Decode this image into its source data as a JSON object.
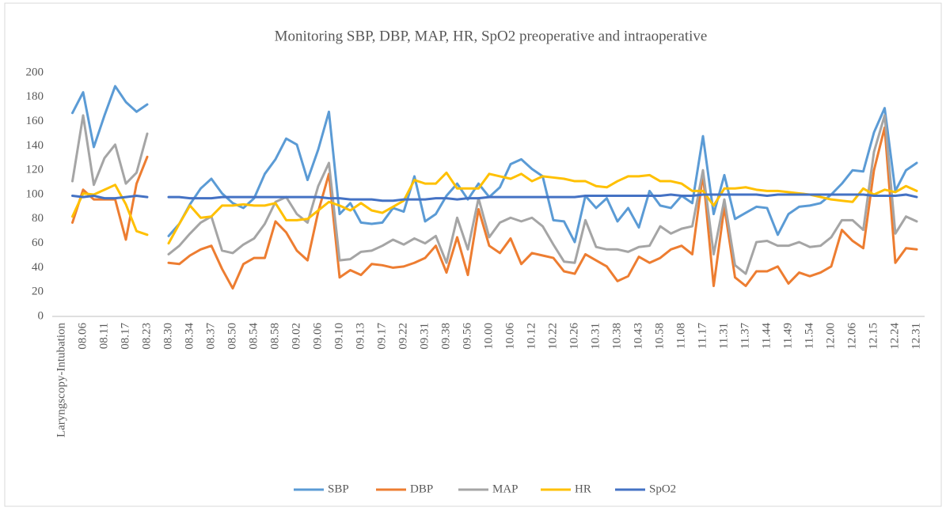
{
  "chart_data": {
    "type": "line",
    "title": "Monitoring SBP, DBP, MAP, HR, SpO2 preoperative and intraoperative",
    "categories": [
      "Laryngscopy-Intubation",
      null,
      "08.06",
      null,
      "08.11",
      null,
      "08.17",
      null,
      "08.23",
      null,
      "08.30",
      null,
      "08.34",
      null,
      "08.37",
      null,
      "08.50",
      null,
      "08.54",
      null,
      "08.58",
      null,
      "09.02",
      null,
      "09.06",
      null,
      "09.10",
      null,
      "09.13",
      null,
      "09.17",
      null,
      "09.22",
      null,
      "09.31",
      null,
      "09.38",
      null,
      "09.56",
      null,
      "10.00",
      null,
      "10.06",
      null,
      "10.12",
      null,
      "10.22",
      null,
      "10.26",
      null,
      "10.31",
      null,
      "10.38",
      null,
      "10.43",
      null,
      "10.58",
      null,
      "11.08",
      null,
      "11.17",
      null,
      "11.31",
      null,
      "11.37",
      null,
      "11.44",
      null,
      "11.49",
      null,
      "11.54",
      null,
      "12.00",
      null,
      "12.06",
      null,
      "12.15",
      null,
      "12.24",
      null,
      "12.31"
    ],
    "series": [
      {
        "name": "SBP",
        "color": "#5b9bd5",
        "values": [
          null,
          167,
          184,
          139,
          165,
          189,
          176,
          168,
          174,
          null,
          66,
          76,
          92,
          105,
          113,
          101,
          93,
          89,
          97,
          117,
          129,
          146,
          141,
          112,
          137,
          168,
          84,
          93,
          77,
          76,
          77,
          89,
          86,
          115,
          78,
          84,
          99,
          109,
          96,
          109,
          98,
          106,
          125,
          129,
          121,
          115,
          79,
          78,
          61,
          99,
          89,
          97,
          78,
          89,
          73,
          103,
          91,
          89,
          99,
          93,
          148,
          84,
          116,
          80,
          85,
          90,
          89,
          67,
          84,
          90,
          91,
          93,
          100,
          109,
          120,
          119,
          151,
          171,
          103,
          120,
          126
        ]
      },
      {
        "name": "DBP",
        "color": "#ed7d31",
        "values": [
          null,
          77,
          104,
          96,
          96,
          96,
          63,
          109,
          131,
          null,
          44,
          43,
          50,
          55,
          58,
          39,
          23,
          43,
          48,
          48,
          78,
          69,
          54,
          46,
          86,
          117,
          32,
          38,
          34,
          43,
          42,
          40,
          41,
          44,
          48,
          58,
          36,
          65,
          34,
          88,
          58,
          52,
          64,
          43,
          52,
          50,
          48,
          37,
          35,
          51,
          46,
          41,
          29,
          33,
          49,
          44,
          48,
          55,
          58,
          51,
          117,
          25,
          90,
          32,
          25,
          37,
          37,
          41,
          27,
          36,
          33,
          36,
          41,
          71,
          62,
          56,
          120,
          155,
          44,
          56,
          55
        ]
      },
      {
        "name": "MAP",
        "color": "#a5a5a5",
        "values": [
          null,
          111,
          165,
          108,
          130,
          141,
          109,
          118,
          150,
          null,
          51,
          58,
          68,
          77,
          82,
          54,
          52,
          59,
          64,
          76,
          94,
          98,
          84,
          77,
          107,
          126,
          46,
          47,
          53,
          54,
          58,
          63,
          59,
          64,
          60,
          66,
          44,
          81,
          55,
          97,
          65,
          77,
          81,
          78,
          81,
          74,
          59,
          45,
          44,
          79,
          57,
          55,
          55,
          53,
          57,
          58,
          74,
          68,
          72,
          74,
          120,
          51,
          96,
          42,
          35,
          61,
          62,
          58,
          58,
          61,
          57,
          58,
          65,
          79,
          79,
          71,
          135,
          165,
          68,
          82,
          78
        ]
      },
      {
        "name": "HR",
        "color": "#ffc000",
        "values": [
          null,
          82,
          101,
          100,
          104,
          108,
          92,
          70,
          67,
          null,
          60,
          76,
          91,
          81,
          82,
          91,
          91,
          92,
          91,
          91,
          93,
          79,
          79,
          80,
          87,
          94,
          91,
          87,
          93,
          87,
          85,
          90,
          95,
          112,
          109,
          109,
          118,
          105,
          105,
          105,
          117,
          115,
          113,
          117,
          111,
          115,
          114,
          113,
          111,
          111,
          107,
          106,
          111,
          115,
          115,
          116,
          111,
          111,
          109,
          103,
          103,
          91,
          105,
          105,
          106,
          104,
          103,
          103,
          102,
          101,
          100,
          98,
          96,
          95,
          94,
          105,
          100,
          104,
          102,
          107,
          103
        ]
      },
      {
        "name": "SpO2",
        "color": "#4472c4",
        "values": [
          null,
          99,
          98,
          99,
          97,
          97,
          98,
          99,
          98,
          null,
          98,
          98,
          97,
          97,
          97,
          98,
          98,
          98,
          98,
          98,
          98,
          98,
          98,
          98,
          98,
          97,
          97,
          96,
          96,
          96,
          95,
          95,
          96,
          96,
          96,
          97,
          97,
          96,
          97,
          97,
          98,
          98,
          98,
          98,
          98,
          98,
          98,
          98,
          98,
          99,
          99,
          99,
          99,
          99,
          99,
          99,
          99,
          100,
          99,
          99,
          100,
          100,
          100,
          100,
          100,
          100,
          99,
          100,
          100,
          100,
          100,
          100,
          100,
          100,
          100,
          100,
          99,
          99,
          99,
          100,
          98
        ]
      }
    ],
    "ylim": [
      0,
      200
    ],
    "yticks": [
      0,
      20,
      40,
      60,
      80,
      100,
      120,
      140,
      160,
      180,
      200
    ],
    "grid": false,
    "legend": "bottom"
  }
}
